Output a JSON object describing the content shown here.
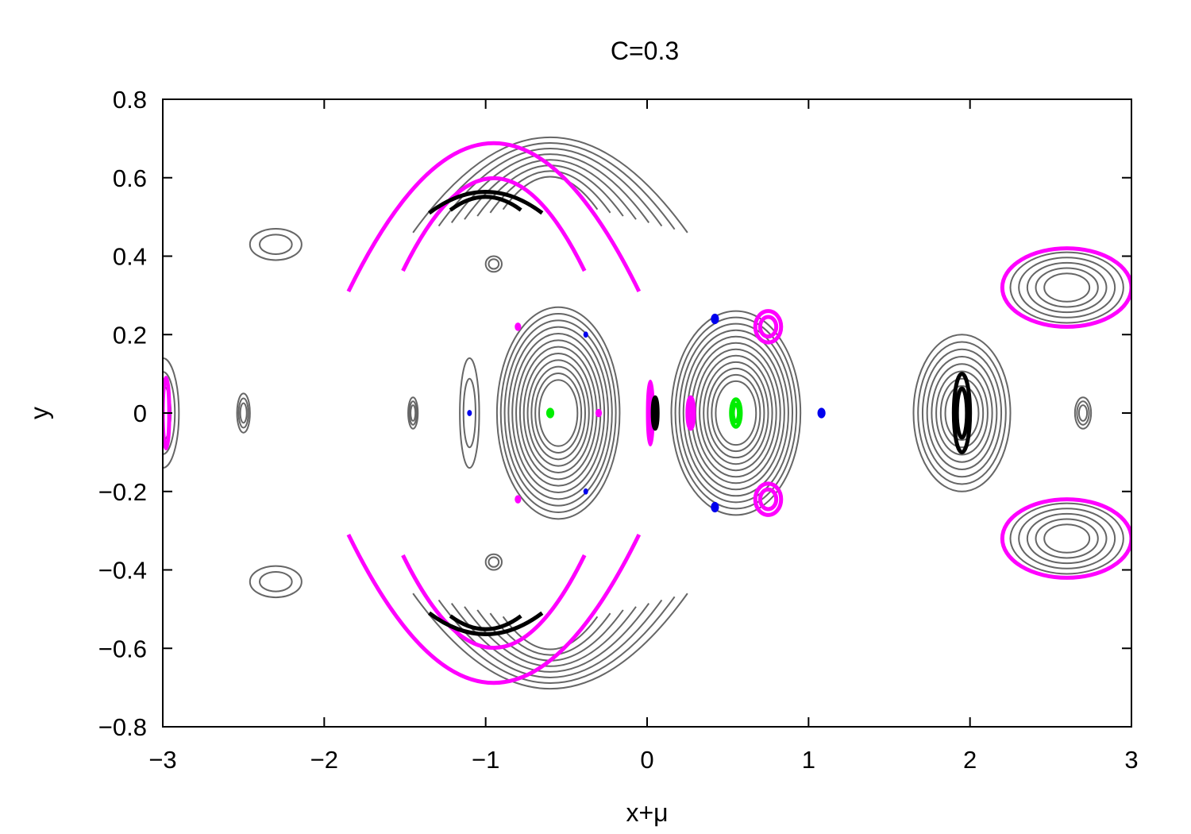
{
  "chart_data": {
    "type": "scatter",
    "title": "C=0.3",
    "xlabel": "x+μ",
    "ylabel": "y",
    "xlim": [
      -3,
      3
    ],
    "ylim": [
      -0.8,
      0.8
    ],
    "xticks": [
      -3,
      -2,
      -1,
      0,
      1,
      2,
      3
    ],
    "xtick_labels": [
      "−3",
      "−2",
      "−1",
      "0",
      "1",
      "2",
      "3"
    ],
    "yticks": [
      0.8,
      0.6,
      0.4,
      0.2,
      0,
      -0.2,
      -0.4,
      -0.6,
      -0.8
    ],
    "ytick_labels": [
      "0.8",
      "0.6",
      "0.4",
      "0.2",
      "0",
      "−0.2",
      "−0.4",
      "−0.6",
      "−0.8"
    ],
    "grid": false,
    "colors": {
      "gray": "#666666",
      "magenta": "#ff00ff",
      "black": "#000000",
      "green": "#00ee00",
      "blue": "#0000ee"
    },
    "families": [
      {
        "color": "gray",
        "kind": "ellipse",
        "cx": 0.55,
        "cy": 0.0,
        "rx": 0.4,
        "ry": 0.26,
        "rings": 12
      },
      {
        "color": "gray",
        "kind": "ellipse",
        "cx": -0.55,
        "cy": 0.0,
        "rx": 0.38,
        "ry": 0.27,
        "rings": 12
      },
      {
        "color": "gray",
        "kind": "ellipse",
        "cx": 1.95,
        "cy": 0.0,
        "rx": 0.3,
        "ry": 0.2,
        "rings": 8
      },
      {
        "color": "gray",
        "kind": "arc",
        "cx": -0.6,
        "cy": 0.55,
        "rx": 0.85,
        "ry": 0.18,
        "rings": 8
      },
      {
        "color": "gray",
        "kind": "arc",
        "cx": -0.6,
        "cy": -0.55,
        "rx": 0.85,
        "ry": 0.18,
        "rings": 8
      },
      {
        "color": "gray",
        "kind": "ellipse",
        "cx": 2.6,
        "cy": 0.32,
        "rx": 0.35,
        "ry": 0.09,
        "rings": 5
      },
      {
        "color": "gray",
        "kind": "ellipse",
        "cx": 2.6,
        "cy": -0.32,
        "rx": 0.35,
        "ry": 0.09,
        "rings": 5
      },
      {
        "color": "gray",
        "kind": "ellipse",
        "cx": -2.5,
        "cy": 0.0,
        "rx": 0.04,
        "ry": 0.05,
        "rings": 3
      },
      {
        "color": "gray",
        "kind": "ellipse",
        "cx": -1.45,
        "cy": 0.0,
        "rx": 0.03,
        "ry": 0.04,
        "rings": 3
      },
      {
        "color": "gray",
        "kind": "ellipse",
        "cx": 2.7,
        "cy": 0.0,
        "rx": 0.05,
        "ry": 0.04,
        "rings": 3
      },
      {
        "color": "gray",
        "kind": "ellipse",
        "cx": -0.95,
        "cy": 0.38,
        "rx": 0.05,
        "ry": 0.02,
        "rings": 2
      },
      {
        "color": "gray",
        "kind": "ellipse",
        "cx": -0.95,
        "cy": -0.38,
        "rx": 0.05,
        "ry": 0.02,
        "rings": 2
      },
      {
        "color": "gray",
        "kind": "ellipse",
        "cx": -1.1,
        "cy": 0.0,
        "rx": 0.06,
        "ry": 0.14,
        "rings": 2
      },
      {
        "color": "gray",
        "kind": "ellipse",
        "cx": -2.3,
        "cy": 0.43,
        "rx": 0.16,
        "ry": 0.04,
        "rings": 2
      },
      {
        "color": "gray",
        "kind": "ellipse",
        "cx": -2.3,
        "cy": -0.43,
        "rx": 0.16,
        "ry": 0.04,
        "rings": 2
      },
      {
        "color": "gray",
        "kind": "ellipse",
        "cx": -3.0,
        "cy": 0.0,
        "rx": 0.1,
        "ry": 0.14,
        "rings": 3
      },
      {
        "color": "magenta",
        "kind": "arc",
        "cx": -0.95,
        "cy": 0.45,
        "rx": 0.9,
        "ry": 0.28,
        "rings": 2
      },
      {
        "color": "magenta",
        "kind": "arc",
        "cx": -0.95,
        "cy": -0.45,
        "rx": 0.9,
        "ry": 0.28,
        "rings": 2
      },
      {
        "color": "magenta",
        "kind": "ellipse",
        "cx": 0.75,
        "cy": 0.22,
        "rx": 0.08,
        "ry": 0.04,
        "rings": 2
      },
      {
        "color": "magenta",
        "kind": "ellipse",
        "cx": 0.75,
        "cy": -0.22,
        "rx": 0.08,
        "ry": 0.04,
        "rings": 2
      },
      {
        "color": "magenta",
        "kind": "ellipse",
        "cx": 2.6,
        "cy": 0.32,
        "rx": 0.4,
        "ry": 0.1,
        "rings": 1
      },
      {
        "color": "magenta",
        "kind": "ellipse",
        "cx": 2.6,
        "cy": -0.32,
        "rx": 0.4,
        "ry": 0.1,
        "rings": 1
      },
      {
        "color": "magenta",
        "kind": "ellipse",
        "cx": 0.27,
        "cy": 0.0,
        "rx": 0.02,
        "ry": 0.04,
        "rings": 2
      },
      {
        "color": "magenta",
        "kind": "ellipse",
        "cx": 0.02,
        "cy": 0.0,
        "rx": 0.015,
        "ry": 0.08,
        "rings": 2
      },
      {
        "color": "magenta",
        "kind": "ellipse",
        "cx": -2.98,
        "cy": 0.0,
        "rx": 0.02,
        "ry": 0.09,
        "rings": 1
      },
      {
        "color": "magenta",
        "kind": "dot",
        "cx": -0.8,
        "cy": 0.22,
        "r": 0.02
      },
      {
        "color": "magenta",
        "kind": "dot",
        "cx": -0.8,
        "cy": -0.22,
        "r": 0.02
      },
      {
        "color": "magenta",
        "kind": "dot",
        "cx": -0.3,
        "cy": 0.0,
        "r": 0.02
      },
      {
        "color": "black",
        "kind": "ellipse",
        "cx": 1.95,
        "cy": 0.0,
        "rx": 0.05,
        "ry": 0.1,
        "rings": 2
      },
      {
        "color": "black",
        "kind": "arc",
        "cx": -1.0,
        "cy": 0.53,
        "rx": 0.35,
        "ry": 0.04,
        "rings": 2
      },
      {
        "color": "black",
        "kind": "arc",
        "cx": -1.0,
        "cy": -0.53,
        "rx": 0.35,
        "ry": 0.04,
        "rings": 2
      },
      {
        "color": "black",
        "kind": "ellipse",
        "cx": 0.05,
        "cy": 0.0,
        "rx": 0.015,
        "ry": 0.04,
        "rings": 2
      },
      {
        "color": "green",
        "kind": "ellipse",
        "cx": 0.55,
        "cy": 0.0,
        "rx": 0.03,
        "ry": 0.035,
        "rings": 2
      },
      {
        "color": "green",
        "kind": "dot",
        "cx": -0.6,
        "cy": 0.0,
        "r": 0.025
      },
      {
        "color": "blue",
        "kind": "dot",
        "cx": 0.42,
        "cy": 0.24,
        "r": 0.025
      },
      {
        "color": "blue",
        "kind": "dot",
        "cx": 0.42,
        "cy": -0.24,
        "r": 0.025
      },
      {
        "color": "blue",
        "kind": "dot",
        "cx": 1.08,
        "cy": 0.0,
        "r": 0.025
      },
      {
        "color": "blue",
        "kind": "dot",
        "cx": -1.1,
        "cy": 0.0,
        "r": 0.01
      },
      {
        "color": "blue",
        "kind": "dot",
        "cx": -0.38,
        "cy": 0.2,
        "r": 0.01
      },
      {
        "color": "blue",
        "kind": "dot",
        "cx": -0.38,
        "cy": -0.2,
        "r": 0.01
      }
    ]
  }
}
